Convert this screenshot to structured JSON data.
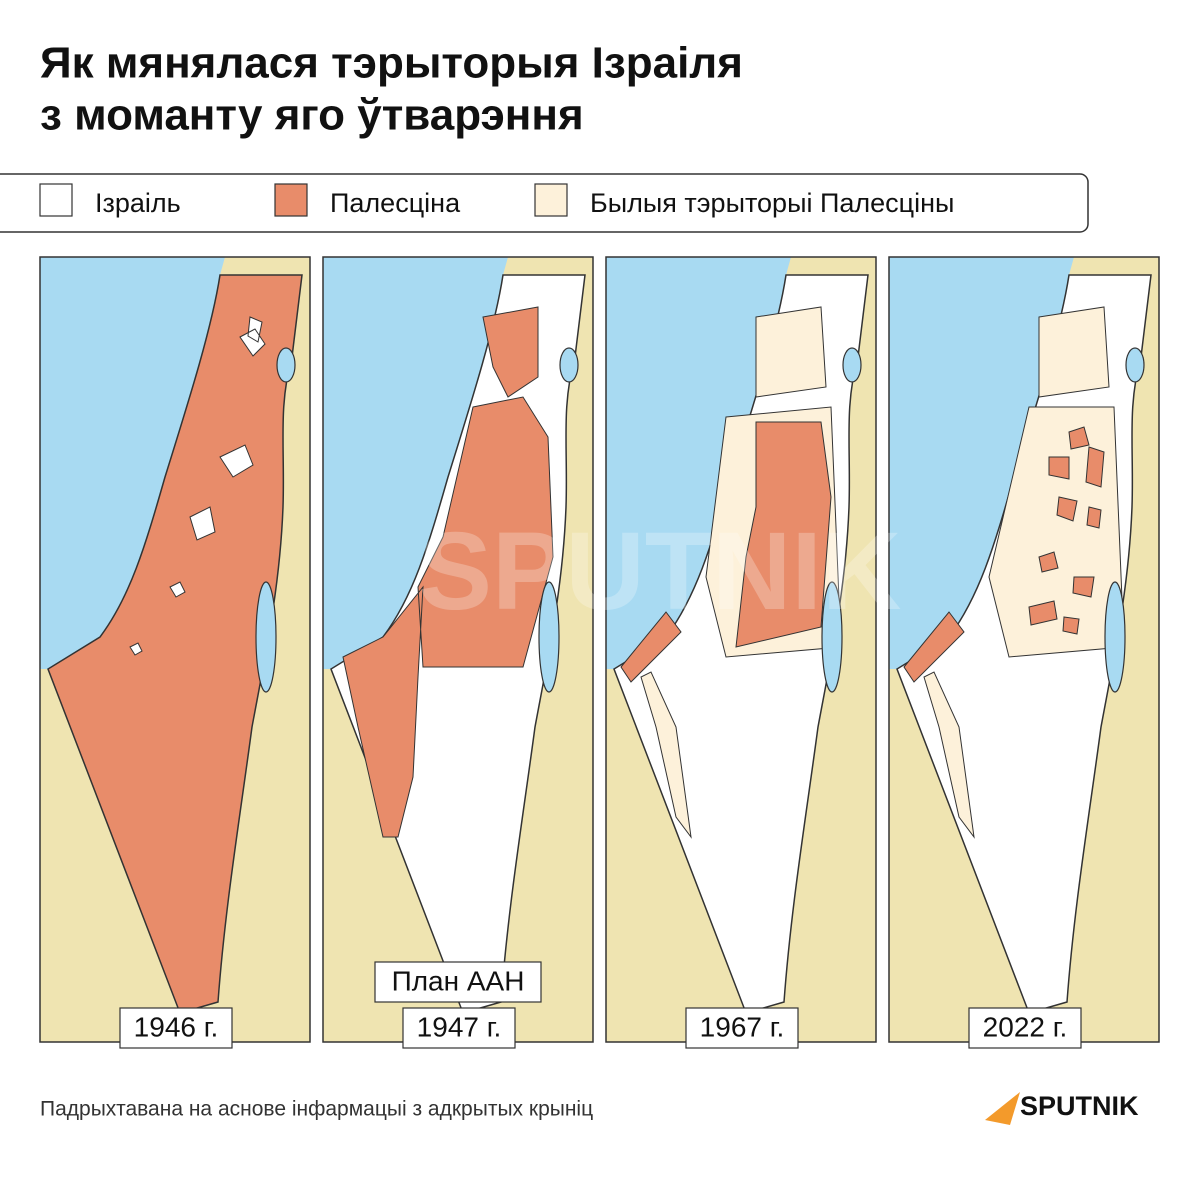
{
  "header": {
    "title_lines": [
      "Як мянялася тэрыторыя Ізраіля",
      "з моманту яго ўтварэння"
    ]
  },
  "legend": {
    "items": [
      {
        "label": "Ізраіль",
        "color": "#ffffff"
      },
      {
        "label": "Палесціна",
        "color": "#e88c6a"
      },
      {
        "label": "Былыя тэрыторыі Палесціны",
        "color": "#fdf1da"
      }
    ]
  },
  "panels": [
    {
      "year": "1946 г."
    },
    {
      "year": "1947 г.",
      "note": "План ААН"
    },
    {
      "year": "1967 г."
    },
    {
      "year": "2022 г."
    }
  ],
  "footer": {
    "source": "Падрыхтавана на аснове інфармацыі з адкрытых крыніц"
  },
  "logo": {
    "text": "SPUTNIK"
  }
}
